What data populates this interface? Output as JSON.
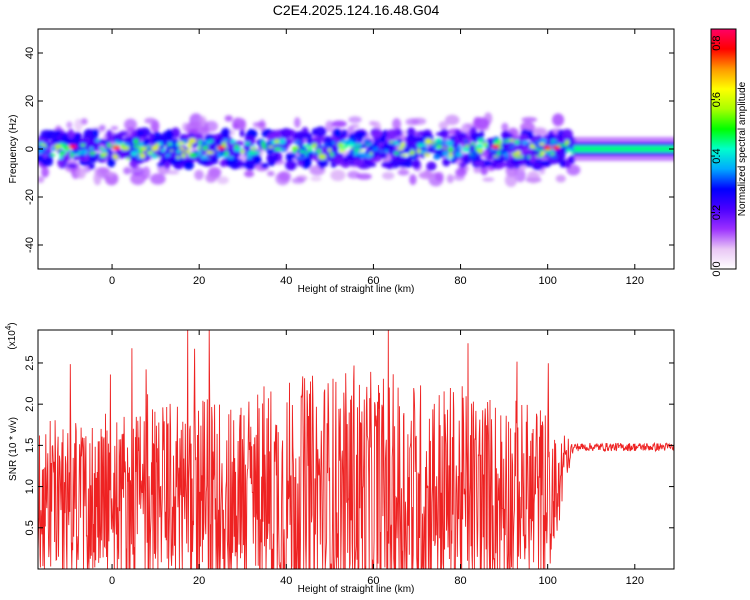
{
  "figure": {
    "title": "C2E4.2025.124.16.48.G04"
  },
  "chart_data": [
    {
      "type": "heatmap",
      "panel": "spectrogram",
      "xlabel": "Height of straight line (km)",
      "ylabel": "Frequency (Hz)",
      "xlim": [
        -17,
        129
      ],
      "ylim": [
        -50,
        50
      ],
      "xticks": [
        0,
        20,
        40,
        60,
        80,
        100,
        120
      ],
      "yticks": [
        -40,
        -20,
        0,
        20,
        40
      ],
      "colorbar": {
        "label": "Normalized spectral amplitude",
        "range": [
          0,
          0.85
        ],
        "ticks": [
          0.0,
          0.2,
          0.4,
          0.6,
          0.8
        ],
        "colormap": [
          "#ffffff",
          "#e9c7f5",
          "#9b30ff",
          "#4b00ff",
          "#0000ff",
          "#00aaff",
          "#00ffcc",
          "#00ff00",
          "#aaff00",
          "#ffff00",
          "#ff9900",
          "#ff0000",
          "#ff0066"
        ]
      },
      "band": {
        "turbulent_extent_km": [
          -17,
          106
        ],
        "turbulent_half_width_hz": 6,
        "steady_extent_km": [
          106,
          129
        ],
        "steady_half_width_hz": 2,
        "steady_amplitude": 0.45,
        "peak_amplitude": 0.8
      }
    },
    {
      "type": "line",
      "panel": "snr",
      "xlabel": "Height of straight line (km)",
      "ylabel": "SNR (10 * v/v)",
      "multiplier": "(x10",
      "multiplier_exp": "4",
      "multiplier_close": ")",
      "xlim": [
        -17,
        129
      ],
      "ylim": [
        0,
        2.9
      ],
      "xticks": [
        0,
        20,
        40,
        60,
        80,
        100,
        120
      ],
      "yticks": [
        0.5,
        1.0,
        1.5,
        2.0,
        2.5
      ],
      "color": "#ee2222",
      "profile": {
        "noisy_extent_km": [
          -17,
          106
        ],
        "noisy_max": 2.9,
        "noisy_min": 0.0,
        "steady_extent_km": [
          106,
          129
        ],
        "steady_level": 1.48,
        "steady_ripple": 0.05
      }
    }
  ]
}
